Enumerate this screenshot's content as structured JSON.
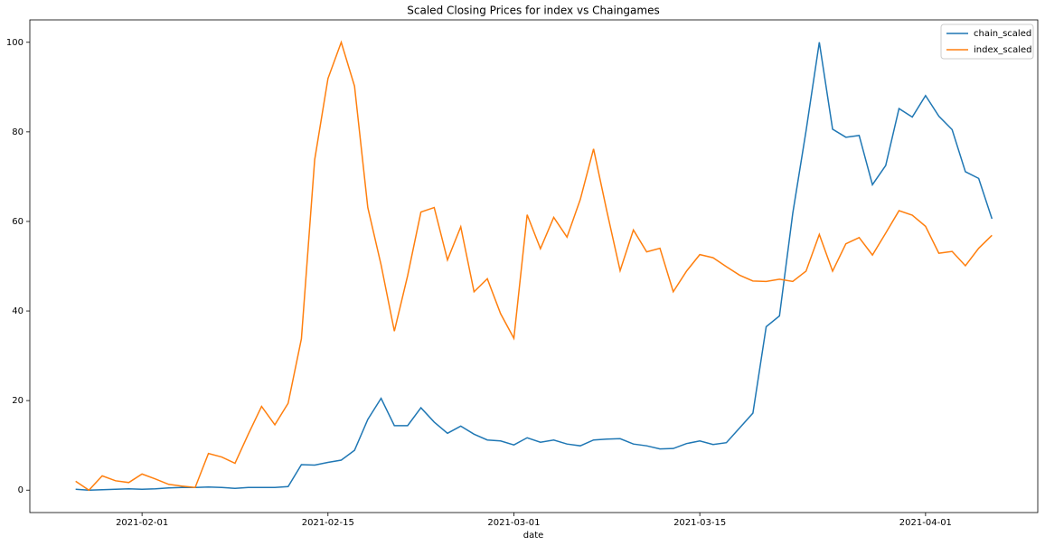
{
  "chart_data": {
    "type": "line",
    "title": "Scaled Closing Prices for index vs Chaingames",
    "xlabel": "date",
    "x": [
      "2021-01-27",
      "2021-01-28",
      "2021-01-29",
      "2021-01-30",
      "2021-01-31",
      "2021-02-01",
      "2021-02-02",
      "2021-02-03",
      "2021-02-04",
      "2021-02-05",
      "2021-02-06",
      "2021-02-07",
      "2021-02-08",
      "2021-02-09",
      "2021-02-10",
      "2021-02-11",
      "2021-02-12",
      "2021-02-13",
      "2021-02-14",
      "2021-02-15",
      "2021-02-16",
      "2021-02-17",
      "2021-02-18",
      "2021-02-19",
      "2021-02-20",
      "2021-02-21",
      "2021-02-22",
      "2021-02-23",
      "2021-02-24",
      "2021-02-25",
      "2021-02-26",
      "2021-02-27",
      "2021-02-28",
      "2021-03-01",
      "2021-03-02",
      "2021-03-03",
      "2021-03-04",
      "2021-03-05",
      "2021-03-06",
      "2021-03-07",
      "2021-03-08",
      "2021-03-09",
      "2021-03-10",
      "2021-03-11",
      "2021-03-12",
      "2021-03-13",
      "2021-03-14",
      "2021-03-15",
      "2021-03-16",
      "2021-03-17",
      "2021-03-18",
      "2021-03-19",
      "2021-03-20",
      "2021-03-21",
      "2021-03-22",
      "2021-03-23",
      "2021-03-24",
      "2021-03-25",
      "2021-03-26",
      "2021-03-27",
      "2021-03-28",
      "2021-03-29",
      "2021-03-30",
      "2021-03-31",
      "2021-04-01",
      "2021-04-02",
      "2021-04-03",
      "2021-04-04",
      "2021-04-05",
      "2021-04-06"
    ],
    "series": [
      {
        "name": "chain_scaled",
        "color": "#1f77b4",
        "values": [
          0.2,
          0,
          0.1,
          0.2,
          0.3,
          0.2,
          0.3,
          0.5,
          0.6,
          0.6,
          0.7,
          0.6,
          0.4,
          0.6,
          0.6,
          0.6,
          0.8,
          5.7,
          5.6,
          6.2,
          6.7,
          8.9,
          15.8,
          20.5,
          14.4,
          14.4,
          18.4,
          15.2,
          12.7,
          14.3,
          12.5,
          11.2,
          11.0,
          10.1,
          11.7,
          10.7,
          11.2,
          10.3,
          9.9,
          11.2,
          11.4,
          11.5,
          10.3,
          9.9,
          9.2,
          9.3,
          10.4,
          11.0,
          10.2,
          10.6,
          13.9,
          17.2,
          36.5,
          38.9,
          61.8,
          80.2,
          100,
          80.6,
          78.8,
          79.2,
          68.2,
          72.5,
          85.2,
          83.3,
          88.1,
          83.5,
          80.5,
          71.1,
          69.6,
          60.6
        ]
      },
      {
        "name": "index_scaled",
        "color": "#ff7f0e",
        "values": [
          2.0,
          0,
          3.2,
          2.1,
          1.7,
          3.6,
          2.5,
          1.3,
          0.9,
          0.6,
          8.2,
          7.4,
          6.0,
          12.5,
          18.7,
          14.6,
          19.4,
          33.8,
          73.8,
          91.9,
          100,
          90.2,
          63.1,
          50.3,
          35.5,
          47.9,
          62.1,
          63.1,
          51.4,
          58.8,
          44.3,
          47.2,
          39.4,
          33.9,
          61.5,
          53.9,
          60.9,
          56.5,
          64.9,
          76.2,
          62.3,
          49.0,
          58.1,
          53.2,
          54.0,
          44.3,
          48.9,
          52.6,
          51.9,
          49.9,
          48.0,
          46.7,
          46.6,
          47.1,
          46.6,
          48.9,
          57.1,
          48.9,
          55.0,
          56.4,
          52.5,
          57.4,
          62.4,
          61.4,
          58.9,
          52.9,
          53.3,
          50.1,
          54.0,
          56.9
        ]
      }
    ],
    "xlim": [
      "2021-01-23T13:12:00Z",
      "2021-04-09T10:48:00Z"
    ],
    "xticks": [
      "2021-02-01",
      "2021-02-15",
      "2021-03-01",
      "2021-03-15",
      "2021-04-01"
    ],
    "ylim": [
      -5,
      105
    ],
    "yticks": [
      0,
      20,
      40,
      60,
      80,
      100
    ],
    "legend": "upper right"
  }
}
